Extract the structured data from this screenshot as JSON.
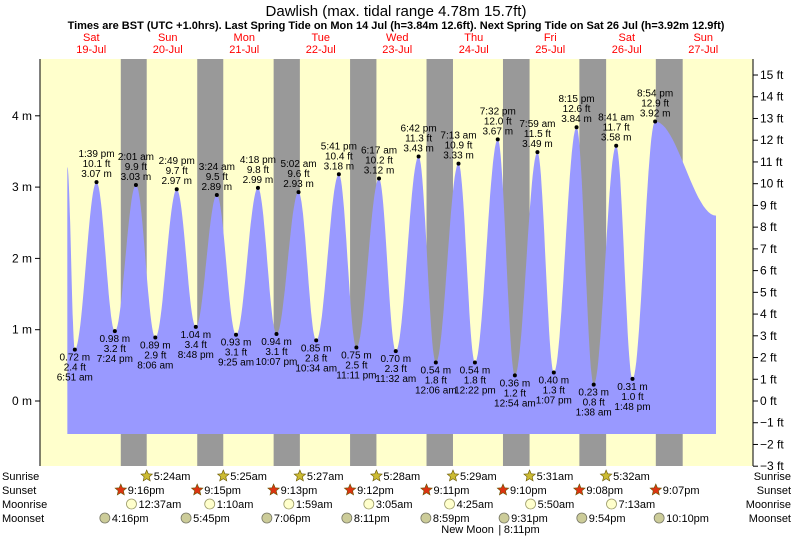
{
  "header": {
    "title": "Dawlish (max. tidal range 4.78m 15.7ft)",
    "subtitle": "Times are BST (UTC +1.0hrs). Last Spring Tide on Mon 14 Jul (h=3.84m 12.6ft). Next Spring Tide on Sat 26 Jul (h=3.92m 12.9ft)"
  },
  "colors": {
    "day_band": "#ffffcc",
    "night_band": "#999999",
    "tide_fill": "#9999ff",
    "day_label": "#ff0000"
  },
  "days": [
    {
      "dow": "Sat",
      "date": "19-Jul"
    },
    {
      "dow": "Sun",
      "date": "20-Jul"
    },
    {
      "dow": "Mon",
      "date": "21-Jul"
    },
    {
      "dow": "Tue",
      "date": "22-Jul"
    },
    {
      "dow": "Wed",
      "date": "23-Jul"
    },
    {
      "dow": "Thu",
      "date": "24-Jul"
    },
    {
      "dow": "Fri",
      "date": "25-Jul"
    },
    {
      "dow": "Sat",
      "date": "26-Jul"
    },
    {
      "dow": "Sun",
      "date": "27-Jul"
    }
  ],
  "chart_data": {
    "type": "area",
    "title": "Dawlish (max. tidal range 4.78m 15.7ft)",
    "left_axis": {
      "unit": "m",
      "ticks": [
        "0 m",
        "1 m",
        "2 m",
        "3 m",
        "4 m"
      ],
      "range": [
        -0.66,
        4.78
      ]
    },
    "right_axis": {
      "unit": "ft",
      "ticks": [
        "−3 ft",
        "−2 ft",
        "−1 ft",
        "0 ft",
        "1 ft",
        "2 ft",
        "3 ft",
        "4 ft",
        "5 ft",
        "6 ft",
        "7 ft",
        "8 ft",
        "9 ft",
        "10 ft",
        "11 ft",
        "12 ft",
        "13 ft",
        "14 ft",
        "15 ft"
      ]
    },
    "series": [
      {
        "name": "Tide height",
        "points": [
          {
            "day": 0,
            "time": "6:51 am",
            "type": "low",
            "m": "0.72 m",
            "ft": "2.4 ft"
          },
          {
            "day": 0,
            "time": "1:39 pm",
            "type": "high",
            "m": "3.07 m",
            "ft": "10.1 ft"
          },
          {
            "day": 0,
            "time": "7:24 pm",
            "type": "low",
            "m": "0.98 m",
            "ft": "3.2 ft"
          },
          {
            "day": 1,
            "time": "2:01 am",
            "type": "high",
            "m": "3.03 m",
            "ft": "9.9 ft"
          },
          {
            "day": 1,
            "time": "8:06 am",
            "type": "low",
            "m": "0.89 m",
            "ft": "2.9 ft"
          },
          {
            "day": 1,
            "time": "2:49 pm",
            "type": "high",
            "m": "2.97 m",
            "ft": "9.7 ft"
          },
          {
            "day": 1,
            "time": "8:48 pm",
            "type": "low",
            "m": "1.04 m",
            "ft": "3.4 ft"
          },
          {
            "day": 2,
            "time": "3:24 am",
            "type": "high",
            "m": "2.89 m",
            "ft": "9.5 ft"
          },
          {
            "day": 2,
            "time": "9:25 am",
            "type": "low",
            "m": "0.93 m",
            "ft": "3.1 ft"
          },
          {
            "day": 2,
            "time": "4:18 pm",
            "type": "high",
            "m": "2.99 m",
            "ft": "9.8 ft"
          },
          {
            "day": 2,
            "time": "10:07 pm",
            "type": "low",
            "m": "0.94 m",
            "ft": "3.1 ft"
          },
          {
            "day": 3,
            "time": "5:02 am",
            "type": "high",
            "m": "2.93 m",
            "ft": "9.6 ft"
          },
          {
            "day": 3,
            "time": "10:34 am",
            "type": "low",
            "m": "0.85 m",
            "ft": "2.8 ft"
          },
          {
            "day": 3,
            "time": "5:41 pm",
            "type": "high",
            "m": "3.18 m",
            "ft": "10.4 ft"
          },
          {
            "day": 3,
            "time": "11:11 pm",
            "type": "low",
            "m": "0.75 m",
            "ft": "2.5 ft"
          },
          {
            "day": 4,
            "time": "6:17 am",
            "type": "high",
            "m": "3.12 m",
            "ft": "10.2 ft"
          },
          {
            "day": 4,
            "time": "11:32 am",
            "type": "low",
            "m": "0.70 m",
            "ft": "2.3 ft"
          },
          {
            "day": 4,
            "time": "6:42 pm",
            "type": "high",
            "m": "3.43 m",
            "ft": "11.3 ft"
          },
          {
            "day": 5,
            "time": "12:06 am",
            "type": "low",
            "m": "0.54 m",
            "ft": "1.8 ft"
          },
          {
            "day": 5,
            "time": "7:13 am",
            "type": "high",
            "m": "3.33 m",
            "ft": "10.9 ft"
          },
          {
            "day": 5,
            "time": "12:22 pm",
            "type": "low",
            "m": "0.54 m",
            "ft": "1.8 ft"
          },
          {
            "day": 5,
            "time": "7:32 pm",
            "type": "high",
            "m": "3.67 m",
            "ft": "12.0 ft"
          },
          {
            "day": 6,
            "time": "12:54 am",
            "type": "low",
            "m": "0.36 m",
            "ft": "1.2 ft"
          },
          {
            "day": 6,
            "time": "7:59 am",
            "type": "high",
            "m": "3.49 m",
            "ft": "11.5 ft"
          },
          {
            "day": 6,
            "time": "1:07 pm",
            "type": "low",
            "m": "0.40 m",
            "ft": "1.3 ft"
          },
          {
            "day": 6,
            "time": "8:15 pm",
            "type": "high",
            "m": "3.84 m",
            "ft": "12.6 ft"
          },
          {
            "day": 7,
            "time": "1:38 am",
            "type": "low",
            "m": "0.23 m",
            "ft": "0.8 ft"
          },
          {
            "day": 7,
            "time": "8:41 am",
            "type": "high",
            "m": "3.58 m",
            "ft": "11.7 ft"
          },
          {
            "day": 7,
            "time": "1:48 pm",
            "type": "low",
            "m": "0.31 m",
            "ft": "1.0 ft"
          },
          {
            "day": 7,
            "time": "8:54 pm",
            "type": "high",
            "m": "3.92 m",
            "ft": "12.9 ft"
          }
        ]
      }
    ],
    "start_time": "4:30 am",
    "end_time": "4:00 pm",
    "start_level_m": 3.28,
    "end_level_m": 2.6,
    "grid": false
  },
  "astro": {
    "labels": {
      "sunrise": "Sunrise",
      "sunset": "Sunset",
      "moonrise": "Moonrise",
      "moonset": "Moonset"
    },
    "sunrise": [
      {
        "day": 1,
        "time": "5:24am"
      },
      {
        "day": 2,
        "time": "5:25am"
      },
      {
        "day": 3,
        "time": "5:27am"
      },
      {
        "day": 4,
        "time": "5:28am"
      },
      {
        "day": 5,
        "time": "5:29am"
      },
      {
        "day": 6,
        "time": "5:31am"
      },
      {
        "day": 7,
        "time": "5:32am"
      }
    ],
    "sunset": [
      {
        "day": 0,
        "time": "9:16pm"
      },
      {
        "day": 1,
        "time": "9:15pm"
      },
      {
        "day": 2,
        "time": "9:13pm"
      },
      {
        "day": 3,
        "time": "9:12pm"
      },
      {
        "day": 4,
        "time": "9:11pm"
      },
      {
        "day": 5,
        "time": "9:10pm"
      },
      {
        "day": 6,
        "time": "9:08pm"
      },
      {
        "day": 7,
        "time": "9:07pm"
      }
    ],
    "moonrise": [
      {
        "day": 1,
        "time": "12:37am"
      },
      {
        "day": 2,
        "time": "1:10am"
      },
      {
        "day": 3,
        "time": "1:59am"
      },
      {
        "day": 4,
        "time": "3:05am"
      },
      {
        "day": 5,
        "time": "4:25am"
      },
      {
        "day": 6,
        "time": "5:50am"
      },
      {
        "day": 7,
        "time": "7:13am"
      }
    ],
    "moonset": [
      {
        "day": 0,
        "time": "4:16pm"
      },
      {
        "day": 1,
        "time": "5:45pm"
      },
      {
        "day": 2,
        "time": "7:06pm"
      },
      {
        "day": 3,
        "time": "8:11pm"
      },
      {
        "day": 4,
        "time": "8:59pm"
      },
      {
        "day": 5,
        "time": "9:31pm"
      },
      {
        "day": 6,
        "time": "9:54pm"
      },
      {
        "day": 7,
        "time": "10:10pm"
      }
    ],
    "moon_phase": {
      "day": 5,
      "text": "New Moon",
      "time": "8:11pm"
    }
  }
}
